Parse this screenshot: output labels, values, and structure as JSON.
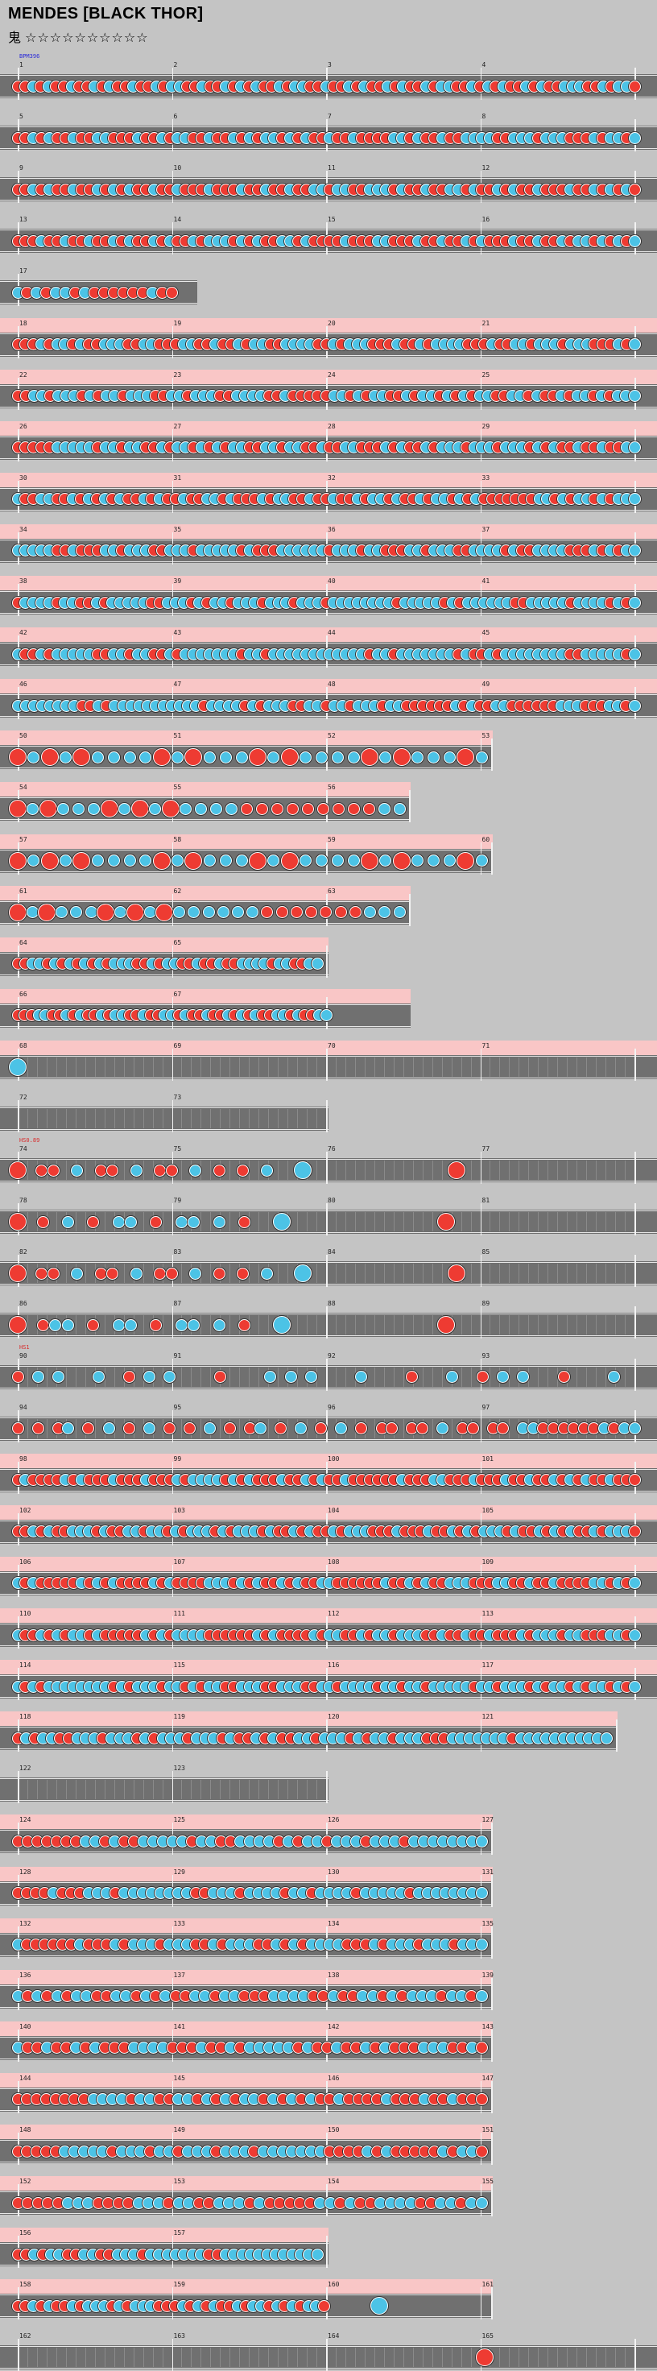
{
  "title": "MENDES [BLACK THOR]",
  "difficulty": {
    "icon": "oni-kanji",
    "label": "鬼",
    "stars": "☆☆☆☆☆☆☆☆☆☆"
  },
  "colors": {
    "don": "#ee3b32",
    "ka": "#4cc3e6",
    "track": "#707070",
    "gogo": "#f9c6c6",
    "background": "#c4c4c4"
  },
  "annotations": [
    {
      "text": "BPM396",
      "row": 0,
      "color": "#2a2ad8"
    },
    {
      "text": "HS0.89",
      "row": 21,
      "color": "#d82a2a"
    },
    {
      "text": "HS1",
      "row": 25,
      "color": "#d82a2a"
    }
  ],
  "rows": [
    {
      "m": [
        1,
        2,
        3,
        4
      ],
      "p": "r r b r b r r b r r b r b r r b r r b r b b r r b r r b r b r b r r b r b b r r b r r b r b r r b r b r r b r b b r r b r b r b r r b r b r r b b b r r b r b b r",
      "g": 0
    },
    {
      "m": [
        5,
        6,
        7,
        8
      ],
      "p": "r r b r b r r b r r b b r r r b r r b r b b r r b r r b r b r b b r b r b r r b r r b r r r r b b r b r r b r r b b b b r r b b b r b b b r r r b r b b r b",
      "g": 0
    },
    {
      "m": [
        9,
        10,
        11,
        12
      ],
      "p": "r r b r b r r b r r b r b r b r r b r r b r r r b r r r b r r b r r b r r b b r b b r r b b b r b r r b r r b b r b r r b r b r r b r r r b r r b r b r b r",
      "g": 0
    },
    {
      "m": [
        13,
        14,
        15,
        16
      ],
      "p": "r r r b r r b r r b r r b r b r r b r b r r b r b b b r b r b r r b b r b r r r r b r r r b b r r r b r r b r r b r b r r r b r r b r r b r b b r b r b r b",
      "g": 0
    },
    {
      "m": [
        17
      ],
      "p": "b r b r b b r b r r r r r r b r r",
      "g": 0,
      "w": 0.3,
      "nb": 1
    },
    {
      "m": [
        18,
        19,
        20,
        21
      ],
      "p": "r r r b r b b r b r r b b b r r b b r r r b b r r b r r b r b b r r b b b b r r b r b b b r r r b r r b r b b b b r r r b r r b b r b b b r b b b r r r b r b",
      "g": 1
    },
    {
      "m": [
        22,
        23,
        24,
        25
      ],
      "p": "r r b b r b b b r b r b b r b b b r r b b r b b b r r b b b b r r b r r r r r b b r b r b b r r b r b b r b r b r b b r r b b r b r r b r b b r b r b b b",
      "g": 1
    },
    {
      "m": [
        26,
        27,
        28,
        29
      ],
      "p": "r r r r r b b b b b r b b r b b r r b r b b r b r b r b b r r b b r b b r r b r r b b r r r b r b r r b r b b b r b b b r b b b r b r b r r b r r b r r b b",
      "g": 1
    },
    {
      "m": [
        30,
        31,
        32,
        33
      ],
      "p": "b r r b b r r b r b r b r b r r b r b r r b r r b b r b r r r b r b b r r b r r b r r b r b b r b r r b r b b r b r b r r r r r r r b b r b r b b r b r b b b",
      "g": 1
    },
    {
      "m": [
        34,
        35,
        36,
        37
      ],
      "p": "b b b b b r r b r r r b b r b b b r r b b b r b b b b b r b r r r b b b b b b r b b b r b b r r r b b r b b b r r b b b b r b r r b b b b r r r b r b r b b",
      "g": 1
    },
    {
      "m": [
        38,
        39,
        40,
        41
      ],
      "p": "r b b b b r b b r r b r b b b b b r r b b b r b r b b r b b b r b b b r b b b r b b b b b b b b r b b b b b r b r b b b b b b r r b b b b b r b b b b r b r b",
      "g": 1
    },
    {
      "m": [
        42,
        43,
        44,
        45
      ],
      "p": "b r r b r b b b b b r r b b r b b r r b r b b b b b b b r b b r b b b b b b b b b b b b r b b r b b b b b b b r b r r b r b b b b b b b b r r b b b b b r b",
      "g": 1
    },
    {
      "m": [
        46,
        47,
        48,
        49
      ],
      "p": "b b b b b b b b r r b r b b b b b b b b b b b r b b b b r b r b b b r r b b r b b r b b b r b b r r r r r r b r b r r b b r r r r r r b b b r r r b b r b",
      "g": 1
    },
    {
      "m": [
        50,
        51,
        52,
        53
      ],
      "p": "R b R b R b b b b R b R b b b R b R b b b b R b R b b b R b",
      "g": 1,
      "w": 0.75,
      "big": 1
    },
    {
      "m": [
        54,
        55,
        56
      ],
      "p": "R b R b b b R b R b R b b b b r r r r r r r r r b b",
      "g": 1,
      "w": 0.625,
      "big": 1
    },
    {
      "m": [
        57,
        58,
        59,
        60
      ],
      "p": "R b R b R b b b b R b R b b b R b R b b b b R b R b b b R b",
      "g": 1,
      "w": 0.75,
      "big": 1
    },
    {
      "m": [
        61,
        62,
        63
      ],
      "p": "R b R b b b R b R b R b b b b b b r r r r r r r b b b",
      "g": 1,
      "w": 0.625,
      "big": 1
    },
    {
      "m": [
        64,
        65
      ],
      "p": "r r b b r b r b r b r b r b b b r r b r b b r r b r r b r r b b b b r b b r r b b",
      "g": 1,
      "w": 0.5
    },
    {
      "m": [
        66,
        67
      ],
      "p": "r r r b b r r b r b r r b r b b r r b r r b b r b r r b r r b r b r b r r b b r b r r b b",
      "g": 1,
      "w": 0.625
    },
    {
      "m": [
        68,
        69,
        70,
        71
      ],
      "p": "B . . . . . . . . . . . . . . . . . . . . . . . . . . . . . . . . . . . . . . . . . . . . . . . . . . . . . . . . . . . . . .",
      "g": 1,
      "sparse": 1
    },
    {
      "m": [
        72,
        73
      ],
      "p": "",
      "g": 0,
      "w": 0.5
    },
    {
      "m": [
        74,
        75,
        76,
        77
      ],
      "p": "R . r r . b . r r . b . r r . b . r . r . b . . B . . . . . . . . . . . . R . . . . . . . . . . . . . . .",
      "g": 0,
      "sparse": 1
    },
    {
      "m": [
        78,
        79,
        80,
        81
      ],
      "p": "R . r . b . r . b b . r . b b . b . r . . B . . . . . . . . . . . . R . . . . . . . . . . . . . . .",
      "g": 0,
      "sparse": 1
    },
    {
      "m": [
        82,
        83,
        84,
        85
      ],
      "p": "R . r r . b . r r . b . r r . b . r . r . b . . B . . . . . . . . . . . . R . . . . . . . . . . . . . . .",
      "g": 0,
      "sparse": 1
    },
    {
      "m": [
        86,
        87,
        88,
        89
      ],
      "p": "R . r b b . r . b b . r . b b . b . r . . B . . . . . . . . . . . . R . . . . . . . . . . . . . . .",
      "g": 0,
      "sparse": 1
    },
    {
      "m": [
        90,
        91,
        92,
        93
      ],
      "p": "r . b . b . . . b . . r . b . b . . . . r . . . . b . b . b . . . . b . . . . r . . . b . . r . b . b . . . r . . . . b . .",
      "g": 0,
      "sparse": 1
    },
    {
      "m": [
        94,
        95,
        96,
        97
      ],
      "p": "r . r . r b . r . b . r . b . r . r . b . r . r b . r . b . r . b . r . r r . r r . b . r r . r r . b b r r r r r r b r b b",
      "g": 0,
      "sparse": 1
    },
    {
      "m": [
        98,
        99,
        100,
        101
      ],
      "p": "r b r r r r b r b r r r b r r r b r r r b r b b b b r b r b r r r b r r b r b r r b r r r r r r b r r r b b r r r b r r r b r r b r r b r b r b r r b r r r",
      "g": 1
    },
    {
      "m": [
        102,
        103,
        104,
        105
      ],
      "p": "r r b r b r r b b b r b r r b b r b b r b r b b b r b r b b b r b r r b r b r r b r b b b r r r b r r r b r r b r b r b b b r b r r b r b r b r r b r b b b r",
      "g": 1
    },
    {
      "m": [
        106,
        107,
        108,
        109
      ],
      "p": "b r b r r r r r b r b r b r r r r b r b r r r r b b b r b r b r r b r b r r b b r r r r r r b r r b r b r r b b b r r r b b r r b r r b r r r r b b r b r b",
      "g": 1
    },
    {
      "m": [
        110,
        111,
        112,
        113
      ],
      "p": "b r r b r b r b b r b r r r r r b r b r b b b b r r r r r r b r b r r r r b r b b r r b r b b r b b b r r b r r b r r b r r r b r b b b r b b r r r b b r b",
      "g": 1
    },
    {
      "m": [
        114,
        115,
        116,
        117
      ],
      "p": "b r b r b b b b b b b b r b r b b b r b b r b r b b r r b b b r r b b b r r b b r b b b b r b b r b b r b b b b b r b b r b b b r b r b b r b r b b r b r b",
      "g": 1
    },
    {
      "m": [
        118,
        119,
        120,
        121
      ],
      "p": "r b r b b r r b b b r b b b r b r b b b r b b b r b r r b r b r r b b r b b b r b r b b r b b b r r r b b b b b b b r b b b b b b b b b b b",
      "g": 1,
      "w": 0.94
    },
    {
      "m": [
        122,
        123
      ],
      "p": "",
      "g": 0,
      "w": 0.5
    },
    {
      "m": [
        124,
        125,
        126,
        127
      ],
      "p": "r r r r r r r b b r b r r b b b b b r b b r r b b b b r b r b b r b b b r b b b r b b b b b b b b",
      "g": 1,
      "w": 0.75
    },
    {
      "m": [
        128,
        129,
        130,
        131
      ],
      "p": "r r r r b r r r b b b r b b b b b b b b r r b b b r b b b b r b b r b b b b r b b b b b r b b b b b b b b",
      "g": 1,
      "w": 0.75
    },
    {
      "m": [
        132,
        133,
        134,
        135
      ],
      "p": "b r r r r r r b r r r b r b b b r b b b r r b r b b b r r b r b r b b b b r r r b r b b b r b b b r b b b",
      "g": 1,
      "w": 0.75
    },
    {
      "m": [
        136,
        137,
        138,
        139
      ],
      "p": "b r b r b r b b r r b b r b r b r r b b r b b r r r b b b b r r b r r b b r b r b b b r b b r b",
      "g": 1,
      "w": 0.75
    },
    {
      "m": [
        140,
        141,
        142,
        143
      ],
      "p": "b r r b r r b r b r r r b b b b r r r b r r b r b b b b b r b r r b r r b r b r r r b b b r r b r",
      "g": 1,
      "w": 0.75
    },
    {
      "m": [
        144,
        145,
        146,
        147
      ],
      "p": "r r r r r r r r b b b b r b b r r b b r b r b r b b r b r b r b r r b r r r r b r r r b r r b r r r",
      "g": 1,
      "w": 0.75
    },
    {
      "m": [
        148,
        149,
        150,
        151
      ],
      "p": "r r r r r b b b b b r b b b r b b r b b b r b b b r b b b b b b b r r r r b r b r r r r r b r b b r",
      "g": 1,
      "w": 0.75
    },
    {
      "m": [
        152,
        153,
        154,
        155
      ],
      "p": "r r r r r b b b r r r r b b b r b b r r b b b r b r r r r r b b r b r r b b b b r r b b r b b",
      "g": 1,
      "w": 0.75
    },
    {
      "m": [
        156,
        157
      ],
      "p": "r r b r b b r r b b r r b b b r b b b b b b b r r b b b b b b b b b b b b",
      "g": 1,
      "w": 0.5
    },
    {
      "m": [
        158,
        159,
        160,
        161
      ],
      "p": "r r b r b r r b r b b b r b r b b b r r r b r b r b r r b r b b r b r b r b b r . . . . . . B . . . . . . . . . . . . .",
      "g": 1,
      "w": 0.75
    },
    {
      "m": [
        162,
        163,
        164,
        165
      ],
      "p": ". . . . . . . . . . . . . . . . . . . . . . . . . . . . . . . . . . . . . . . . . . . . . . . . . . R . . . . . . . . . . . . . . . .",
      "g": 0,
      "sparse": 1
    }
  ]
}
